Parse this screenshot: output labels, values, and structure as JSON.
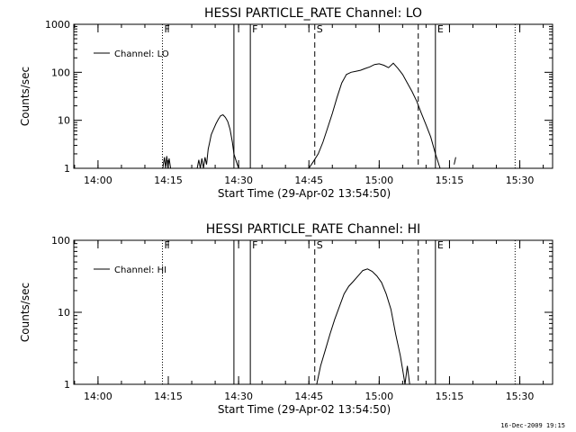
{
  "footer": "16-Dec-2009 19:15",
  "chart_data": [
    {
      "type": "line",
      "title": "HESSI PARTICLE_RATE Channel: LO",
      "xlabel": "Start Time (29-Apr-02 13:54:50)",
      "ylabel": "Counts/sec",
      "yscale": "log",
      "ylim": [
        1,
        1000
      ],
      "xlim": [
        "13:54:50",
        "15:37:00"
      ],
      "x_tick_labels": [
        "14:00",
        "14:15",
        "14:30",
        "14:45",
        "15:00",
        "15:15",
        "15:30"
      ],
      "y_tick_labels": [
        "1",
        "10",
        "100",
        "1000"
      ],
      "legend": {
        "position": "top-left",
        "entries": [
          "Channel: LO"
        ]
      },
      "markers": [
        {
          "time": "14:13:45",
          "style": "dotted",
          "label": "F"
        },
        {
          "time": "14:29:00",
          "style": "solid",
          "label": ""
        },
        {
          "time": "14:32:30",
          "style": "solid",
          "label": "F"
        },
        {
          "time": "14:46:15",
          "style": "dashed",
          "label": "S"
        },
        {
          "time": "15:08:20",
          "style": "dashed",
          "label": ""
        },
        {
          "time": "15:12:00",
          "style": "solid",
          "label": "E"
        },
        {
          "time": "15:29:00",
          "style": "dotted",
          "label": ""
        }
      ],
      "series": [
        {
          "name": "Channel: LO",
          "segments": [
            {
              "x": [
                "14:13:50",
                "14:14:10",
                "14:14:25",
                "14:14:40",
                "14:14:55",
                "14:15:10",
                "14:15:30"
              ],
              "y": [
                1,
                1.7,
                1,
                1.8,
                1,
                1.6,
                1
              ]
            },
            {
              "x": [
                "14:21:10",
                "14:21:30",
                "14:21:50",
                "14:22:10",
                "14:22:30",
                "14:22:50",
                "14:23:10",
                "14:23:30",
                "14:23:50",
                "14:24:10",
                "14:24:40",
                "14:25:10",
                "14:25:40",
                "14:26:10",
                "14:26:40",
                "14:27:10",
                "14:27:40",
                "14:28:10",
                "14:28:40",
                "14:29:00",
                "14:29:30",
                "14:30:00"
              ],
              "y": [
                1,
                1.5,
                1,
                1.6,
                1,
                1.7,
                1.2,
                2.5,
                3.5,
                5,
                6.5,
                8.5,
                10.5,
                12.5,
                13,
                11.5,
                9.5,
                6.5,
                3.5,
                2,
                1.4,
                1
              ]
            },
            {
              "x": [
                "14:45:00",
                "14:46:00",
                "14:47:00",
                "14:48:00",
                "14:49:00",
                "14:50:00",
                "14:51:00",
                "14:52:00",
                "14:53:00",
                "14:54:00",
                "14:55:00",
                "14:56:00",
                "14:57:00",
                "14:58:00",
                "14:59:00",
                "15:00:00",
                "15:01:00",
                "15:02:00",
                "15:03:00",
                "15:04:00",
                "15:05:00",
                "15:06:00",
                "15:07:00",
                "15:08:00",
                "15:09:00",
                "15:10:00",
                "15:11:00",
                "15:12:00",
                "15:13:00"
              ],
              "y": [
                1,
                1.4,
                2,
                3.5,
                7,
                14,
                30,
                60,
                90,
                100,
                105,
                110,
                120,
                130,
                145,
                150,
                140,
                125,
                155,
                120,
                90,
                60,
                40,
                25,
                14,
                8,
                4.5,
                2,
                1
              ]
            },
            {
              "x": [
                "15:16:00",
                "15:16:20"
              ],
              "y": [
                1.2,
                1.7
              ]
            }
          ]
        }
      ]
    },
    {
      "type": "line",
      "title": "HESSI PARTICLE_RATE Channel: HI",
      "xlabel": "Start Time (29-Apr-02 13:54:50)",
      "ylabel": "Counts/sec",
      "yscale": "log",
      "ylim": [
        1,
        100
      ],
      "xlim": [
        "13:54:50",
        "15:37:00"
      ],
      "x_tick_labels": [
        "14:00",
        "14:15",
        "14:30",
        "14:45",
        "15:00",
        "15:15",
        "15:30"
      ],
      "y_tick_labels": [
        "1",
        "10",
        "100"
      ],
      "legend": {
        "position": "top-left",
        "entries": [
          "Channel: HI"
        ]
      },
      "markers": [
        {
          "time": "14:13:45",
          "style": "dotted",
          "label": "F"
        },
        {
          "time": "14:29:00",
          "style": "solid",
          "label": ""
        },
        {
          "time": "14:32:30",
          "style": "solid",
          "label": "F"
        },
        {
          "time": "14:46:15",
          "style": "dashed",
          "label": "S"
        },
        {
          "time": "15:08:20",
          "style": "dashed",
          "label": ""
        },
        {
          "time": "15:12:00",
          "style": "solid",
          "label": "E"
        },
        {
          "time": "15:29:00",
          "style": "dotted",
          "label": ""
        }
      ],
      "series": [
        {
          "name": "Channel: HI",
          "segments": [
            {
              "x": [
                "14:46:40",
                "14:47:30",
                "14:48:30",
                "14:49:30",
                "14:50:30",
                "14:51:30",
                "14:52:30",
                "14:53:30",
                "14:54:30",
                "14:55:30",
                "14:56:30",
                "14:57:30",
                "14:58:30",
                "14:59:30",
                "15:00:30",
                "15:01:30",
                "15:02:30",
                "15:03:30",
                "15:04:30",
                "15:05:00",
                "15:05:30",
                "15:06:00",
                "15:06:30",
                "15:07:00"
              ],
              "y": [
                1,
                1.8,
                3,
                5,
                8,
                12,
                18,
                23,
                27,
                32,
                38,
                40,
                37,
                32,
                26,
                18,
                11,
                5,
                2.5,
                1.6,
                1,
                1.8,
                1,
                1
              ]
            }
          ]
        }
      ]
    }
  ]
}
